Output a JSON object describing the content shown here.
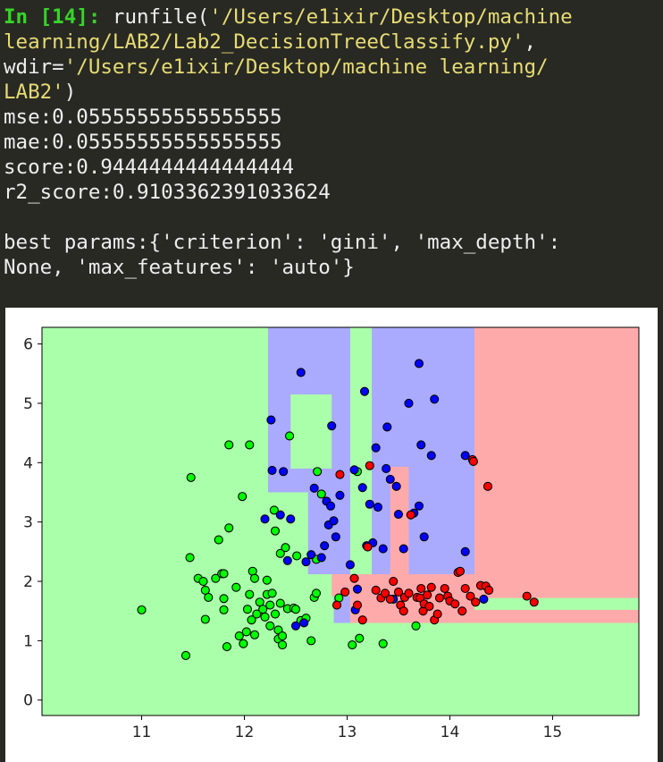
{
  "console": {
    "prompt": "In [14]:",
    "cmd_pre": " runfile(",
    "file_path_1": "'/Users/e1ixir/Desktop/machine",
    "file_path_2": "learning/LAB2/Lab2_DecisionTreeClassify.py'",
    "comma": ",",
    "wdir_pre": "wdir=",
    "wdir_1": "'/Users/e1ixir/Desktop/machine learning/",
    "wdir_2": "LAB2'",
    "close_paren": ")",
    "output_lines": [
      "mse:0.05555555555555555",
      "mae:0.05555555555555555",
      "score:0.9444444444444444",
      "r2_score:0.9103362391033624",
      "",
      "best params:{'criterion': 'gini', 'max_depth':",
      "None, 'max_features': 'auto'}"
    ]
  },
  "chart_data": {
    "type": "scatter",
    "xlim": [
      10.03,
      15.84
    ],
    "ylim": [
      -0.26,
      6.28
    ],
    "xticks": [
      11,
      12,
      13,
      14,
      15
    ],
    "yticks": [
      0,
      1,
      2,
      3,
      4,
      5,
      6
    ],
    "colors": {
      "green": "#aaffaa",
      "blue": "#aaaaff",
      "red": "#ffaaaa",
      "green_pt": "#00ff00",
      "blue_pt": "#0000ff",
      "red_pt": "#ff0000"
    },
    "regions": [
      {
        "c": "blue",
        "x": [
          12.23,
          13.03
        ],
        "y": [
          3.5,
          6.28
        ]
      },
      {
        "c": "green",
        "x": [
          12.45,
          12.85
        ],
        "y": [
          3.9,
          5.15
        ]
      },
      {
        "c": "blue",
        "x": [
          12.62,
          12.87
        ],
        "y": [
          2.12,
          3.5
        ]
      },
      {
        "c": "blue",
        "x": [
          12.87,
          13.03
        ],
        "y": [
          1.3,
          3.5
        ]
      },
      {
        "c": "red",
        "x": [
          12.85,
          13.03
        ],
        "y": [
          1.75,
          2.12
        ]
      },
      {
        "c": "blue",
        "x": [
          13.24,
          14.24
        ],
        "y": [
          1.3,
          6.28
        ]
      },
      {
        "c": "red",
        "x": [
          14.24,
          15.84
        ],
        "y": [
          1.3,
          6.28
        ]
      },
      {
        "c": "red",
        "x": [
          13.03,
          14.24
        ],
        "y": [
          1.3,
          2.12
        ]
      },
      {
        "c": "red",
        "x": [
          13.42,
          13.6
        ],
        "y": [
          2.12,
          3.93
        ]
      },
      {
        "c": "green",
        "x": [
          14.24,
          15.84
        ],
        "y": [
          1.52,
          1.72
        ]
      }
    ],
    "green_points": [
      [
        11.0,
        1.52
      ],
      [
        11.43,
        0.75
      ],
      [
        11.47,
        2.4
      ],
      [
        11.48,
        3.75
      ],
      [
        11.55,
        2.05
      ],
      [
        11.6,
        2.0
      ],
      [
        11.62,
        1.85
      ],
      [
        11.62,
        1.36
      ],
      [
        11.65,
        1.73
      ],
      [
        11.72,
        2.05
      ],
      [
        11.75,
        2.7
      ],
      [
        11.78,
        2.13
      ],
      [
        11.8,
        1.71
      ],
      [
        11.8,
        2.13
      ],
      [
        11.8,
        1.52
      ],
      [
        11.83,
        0.9
      ],
      [
        11.85,
        4.3
      ],
      [
        11.85,
        2.9
      ],
      [
        11.92,
        1.9
      ],
      [
        11.95,
        1.08
      ],
      [
        11.98,
        3.43
      ],
      [
        11.99,
        0.95
      ],
      [
        12.02,
        1.15
      ],
      [
        12.03,
        1.53
      ],
      [
        12.05,
        4.3
      ],
      [
        12.05,
        1.78
      ],
      [
        12.07,
        1.35
      ],
      [
        12.08,
        2.17
      ],
      [
        12.1,
        1.1
      ],
      [
        12.1,
        2.05
      ],
      [
        12.12,
        1.45
      ],
      [
        12.15,
        1.65
      ],
      [
        12.18,
        1.53
      ],
      [
        12.2,
        1.4
      ],
      [
        12.22,
        2.02
      ],
      [
        12.22,
        1.78
      ],
      [
        12.25,
        1.6
      ],
      [
        12.25,
        1.25
      ],
      [
        12.27,
        1.8
      ],
      [
        12.29,
        3.2
      ],
      [
        12.3,
        2.85
      ],
      [
        12.3,
        1.45
      ],
      [
        12.33,
        1.03
      ],
      [
        12.33,
        1.18
      ],
      [
        12.35,
        2.47
      ],
      [
        12.35,
        1.63
      ],
      [
        12.37,
        0.93
      ],
      [
        12.37,
        1.08
      ],
      [
        12.4,
        2.57
      ],
      [
        12.42,
        1.54
      ],
      [
        12.44,
        4.45
      ],
      [
        12.48,
        1.55
      ],
      [
        12.5,
        1.53
      ],
      [
        12.51,
        2.43
      ],
      [
        12.55,
        1.34
      ],
      [
        12.6,
        1.38
      ],
      [
        12.65,
        1.0
      ],
      [
        12.68,
        1.73
      ],
      [
        12.7,
        2.37
      ],
      [
        12.7,
        1.8
      ],
      [
        12.71,
        3.85
      ],
      [
        12.75,
        3.47
      ],
      [
        12.92,
        1.72
      ],
      [
        13.05,
        0.93
      ],
      [
        13.1,
        3.85
      ],
      [
        13.12,
        1.04
      ],
      [
        13.35,
        0.95
      ],
      [
        13.67,
        1.25
      ]
    ],
    "blue_points": [
      [
        12.2,
        3.05
      ],
      [
        12.26,
        4.72
      ],
      [
        12.27,
        3.87
      ],
      [
        12.35,
        3.12
      ],
      [
        12.38,
        3.85
      ],
      [
        12.42,
        2.35
      ],
      [
        12.45,
        3.05
      ],
      [
        12.5,
        1.25
      ],
      [
        12.55,
        5.52
      ],
      [
        12.58,
        1.3
      ],
      [
        12.6,
        2.33
      ],
      [
        12.65,
        2.45
      ],
      [
        12.68,
        3.57
      ],
      [
        12.75,
        2.4
      ],
      [
        12.78,
        2.6
      ],
      [
        12.8,
        3.35
      ],
      [
        12.82,
        2.95
      ],
      [
        12.84,
        3.27
      ],
      [
        12.85,
        4.62
      ],
      [
        12.87,
        3.02
      ],
      [
        12.89,
        2.75
      ],
      [
        12.93,
        3.45
      ],
      [
        13.03,
        2.28
      ],
      [
        13.07,
        3.88
      ],
      [
        13.08,
        1.52
      ],
      [
        13.1,
        1.87
      ],
      [
        13.15,
        3.58
      ],
      [
        13.17,
        5.2
      ],
      [
        13.19,
        2.6
      ],
      [
        13.22,
        3.3
      ],
      [
        13.25,
        2.65
      ],
      [
        13.28,
        4.25
      ],
      [
        13.3,
        3.25
      ],
      [
        13.35,
        2.55
      ],
      [
        13.38,
        3.9
      ],
      [
        13.39,
        4.6
      ],
      [
        13.42,
        3.72
      ],
      [
        13.45,
        1.7
      ],
      [
        13.48,
        3.6
      ],
      [
        13.5,
        3.13
      ],
      [
        13.55,
        2.55
      ],
      [
        13.6,
        5.0
      ],
      [
        13.65,
        3.15
      ],
      [
        13.7,
        3.27
      ],
      [
        13.7,
        5.67
      ],
      [
        13.72,
        4.3
      ],
      [
        13.75,
        2.75
      ],
      [
        13.82,
        4.12
      ],
      [
        13.85,
        5.07
      ],
      [
        14.15,
        4.12
      ],
      [
        14.15,
        2.5
      ],
      [
        14.33,
        1.7
      ]
    ],
    "red_points": [
      [
        12.9,
        1.6
      ],
      [
        12.93,
        3.8
      ],
      [
        13.07,
        2.05
      ],
      [
        13.1,
        1.6
      ],
      [
        13.15,
        1.35
      ],
      [
        13.2,
        2.58
      ],
      [
        13.22,
        3.95
      ],
      [
        13.28,
        1.85
      ],
      [
        13.33,
        1.72
      ],
      [
        13.37,
        1.8
      ],
      [
        13.42,
        1.7
      ],
      [
        13.45,
        2.0
      ],
      [
        13.5,
        1.82
      ],
      [
        13.52,
        1.6
      ],
      [
        13.56,
        1.73
      ],
      [
        13.6,
        1.8
      ],
      [
        13.62,
        3.12
      ],
      [
        13.68,
        1.73
      ],
      [
        13.71,
        1.72
      ],
      [
        13.72,
        1.88
      ],
      [
        13.74,
        1.5
      ],
      [
        13.75,
        1.62
      ],
      [
        13.78,
        1.77
      ],
      [
        13.8,
        1.58
      ],
      [
        13.82,
        1.9
      ],
      [
        13.85,
        1.35
      ],
      [
        13.88,
        1.45
      ],
      [
        13.9,
        1.72
      ],
      [
        13.95,
        1.88
      ],
      [
        13.98,
        1.75
      ],
      [
        14.0,
        1.67
      ],
      [
        14.05,
        1.62
      ],
      [
        14.08,
        2.15
      ],
      [
        14.1,
        2.17
      ],
      [
        14.12,
        1.5
      ],
      [
        14.15,
        1.88
      ],
      [
        14.2,
        1.75
      ],
      [
        14.22,
        4.05
      ],
      [
        14.25,
        1.65
      ],
      [
        14.3,
        1.93
      ],
      [
        14.35,
        1.92
      ],
      [
        14.37,
        3.6
      ],
      [
        14.38,
        1.85
      ],
      [
        14.75,
        1.75
      ],
      [
        14.82,
        1.65
      ],
      [
        14.23,
        4.02
      ],
      [
        13.55,
        1.5
      ],
      [
        12.98,
        1.82
      ]
    ]
  }
}
